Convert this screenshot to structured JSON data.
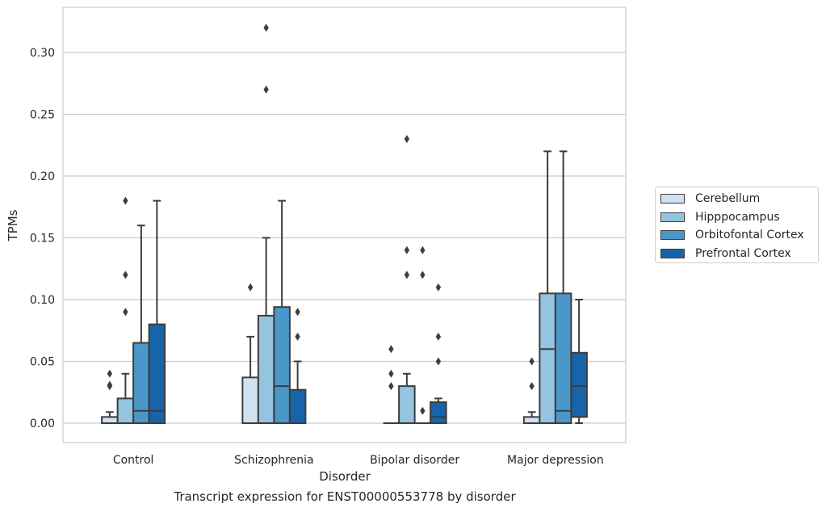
{
  "caption": "Transcript expression for ENST00000553778 by disorder",
  "chart_data": {
    "type": "box",
    "title": "",
    "xlabel": "Disorder",
    "ylabel": "TPMs",
    "ylim": [
      -0.015,
      0.337
    ],
    "yticks": [
      0.0,
      0.05,
      0.1,
      0.15,
      0.2,
      0.25,
      0.3
    ],
    "ytick_labels": [
      "0.00",
      "0.05",
      "0.10",
      "0.15",
      "0.20",
      "0.25",
      "0.30"
    ],
    "grid": true,
    "legend_position": "right",
    "categories": [
      "Control",
      "Schizophrenia",
      "Bipolar disorder",
      "Major depression"
    ],
    "series": [
      {
        "name": "Cerebellum",
        "color": "#d0e1f2",
        "boxes": [
          {
            "whisker_low": 0.0,
            "q1": 0.0,
            "median": 0.0,
            "q3": 0.005,
            "whisker_high": 0.009,
            "outliers": [
              0.03,
              0.031,
              0.04
            ]
          },
          {
            "whisker_low": 0.0,
            "q1": 0.0,
            "median": 0.0,
            "q3": 0.037,
            "whisker_high": 0.07,
            "outliers": [
              0.11
            ]
          },
          {
            "whisker_low": 0.0,
            "q1": 0.0,
            "median": 0.0,
            "q3": 0.0,
            "whisker_high": 0.0,
            "outliers": [
              0.03,
              0.04,
              0.06
            ]
          },
          {
            "whisker_low": 0.0,
            "q1": 0.0,
            "median": 0.0,
            "q3": 0.005,
            "whisker_high": 0.009,
            "outliers": [
              0.03,
              0.05
            ]
          }
        ]
      },
      {
        "name": "Hipppocampus",
        "color": "#94c4df",
        "boxes": [
          {
            "whisker_low": 0.0,
            "q1": 0.0,
            "median": 0.0,
            "q3": 0.02,
            "whisker_high": 0.04,
            "outliers": [
              0.09,
              0.12,
              0.18
            ]
          },
          {
            "whisker_low": 0.0,
            "q1": 0.0,
            "median": 0.0,
            "q3": 0.087,
            "whisker_high": 0.15,
            "outliers": [
              0.27,
              0.32
            ]
          },
          {
            "whisker_low": 0.0,
            "q1": 0.0,
            "median": 0.0,
            "q3": 0.03,
            "whisker_high": 0.04,
            "outliers": [
              0.12,
              0.14,
              0.23
            ]
          },
          {
            "whisker_low": 0.0,
            "q1": 0.0,
            "median": 0.06,
            "q3": 0.105,
            "whisker_high": 0.22,
            "outliers": []
          }
        ]
      },
      {
        "name": "Orbitofontal Cortex",
        "color": "#4a98c9",
        "boxes": [
          {
            "whisker_low": 0.0,
            "q1": 0.0,
            "median": 0.01,
            "q3": 0.065,
            "whisker_high": 0.16,
            "outliers": []
          },
          {
            "whisker_low": 0.0,
            "q1": 0.0,
            "median": 0.03,
            "q3": 0.094,
            "whisker_high": 0.18,
            "outliers": []
          },
          {
            "whisker_low": 0.0,
            "q1": 0.0,
            "median": 0.0,
            "q3": 0.0,
            "whisker_high": 0.0,
            "outliers": [
              0.01,
              0.12,
              0.14
            ]
          },
          {
            "whisker_low": 0.0,
            "q1": 0.0,
            "median": 0.01,
            "q3": 0.105,
            "whisker_high": 0.22,
            "outliers": []
          }
        ]
      },
      {
        "name": "Prefrontal Cortex",
        "color": "#1764ab",
        "boxes": [
          {
            "whisker_low": 0.0,
            "q1": 0.0,
            "median": 0.01,
            "q3": 0.08,
            "whisker_high": 0.18,
            "outliers": []
          },
          {
            "whisker_low": 0.0,
            "q1": 0.0,
            "median": 0.0,
            "q3": 0.027,
            "whisker_high": 0.05,
            "outliers": [
              0.07,
              0.09
            ]
          },
          {
            "whisker_low": 0.0,
            "q1": 0.0,
            "median": 0.005,
            "q3": 0.017,
            "whisker_high": 0.02,
            "outliers": [
              0.05,
              0.07,
              0.11
            ]
          },
          {
            "whisker_low": 0.0,
            "q1": 0.005,
            "median": 0.03,
            "q3": 0.057,
            "whisker_high": 0.1,
            "outliers": []
          }
        ]
      }
    ]
  }
}
